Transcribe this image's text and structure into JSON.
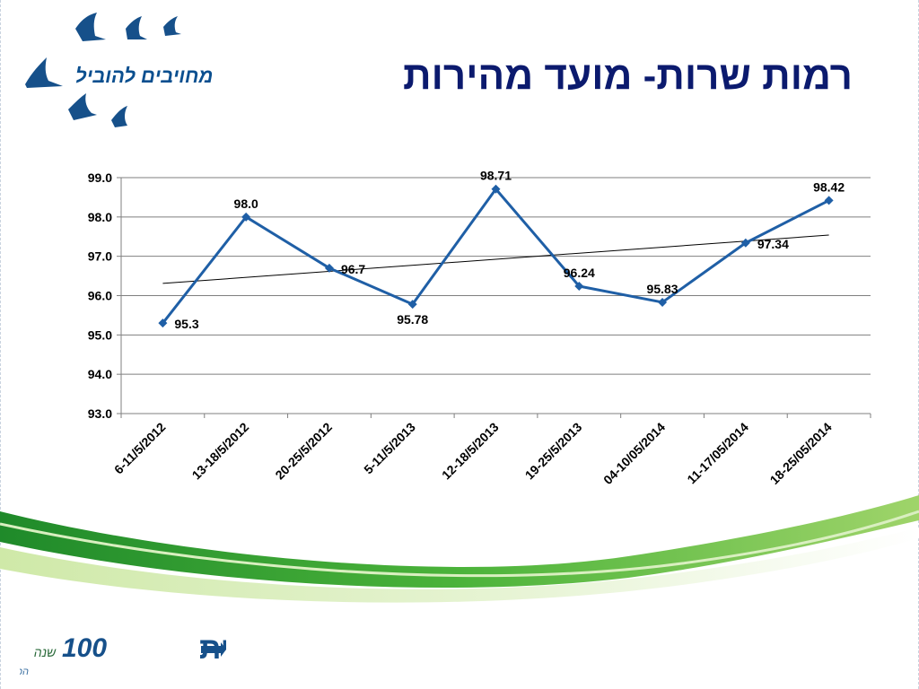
{
  "slide": {
    "title": "רמות שרות- מועד מהירות",
    "top_logo": {
      "slogan": "מחויבים להוביל"
    },
    "bottom_logo": {
      "name": "כללית",
      "number": "100",
      "word": "שנה",
      "tagline": "הכי טובה למשפחה",
      "accent": "#16508a"
    }
  },
  "chart_data": {
    "type": "line",
    "categories": [
      "6-11/5/2012",
      "13-18/5/2012",
      "20-25/5/2012",
      "5-11/5/2013",
      "12-18/5/2013",
      "19-25/5/2013",
      "04-10/05/2014",
      "11-17/05/2014",
      "18-25/05/2014"
    ],
    "series": [
      {
        "values": [
          95.3,
          98.0,
          96.7,
          95.78,
          98.71,
          96.24,
          95.83,
          97.34,
          98.42
        ],
        "labels": [
          "95.3",
          "98.0",
          "96.7",
          "95.78",
          "98.71",
          "96.24",
          "95.83",
          "97.34",
          "98.42"
        ],
        "color": "#1f5fa6"
      }
    ],
    "trendline": {
      "type": "linear",
      "color": "#000000"
    },
    "ylim": [
      93.0,
      99.0
    ],
    "yticks": [
      93.0,
      94.0,
      95.0,
      96.0,
      97.0,
      98.0,
      99.0
    ],
    "ytick_labels": [
      "93.0",
      "94.0",
      "95.0",
      "96.0",
      "97.0",
      "98.0",
      "99.0"
    ],
    "grid": true,
    "legend": "none",
    "title": "",
    "xlabel": "",
    "ylabel": ""
  }
}
